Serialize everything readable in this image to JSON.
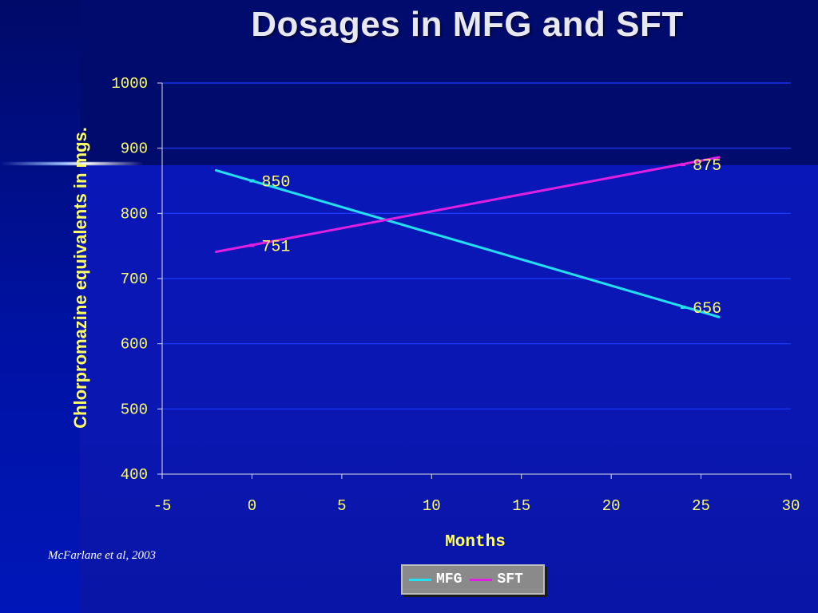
{
  "chart_data": {
    "type": "line",
    "title": "Dosages in MFG and SFT",
    "xlabel": "Months",
    "ylabel": "Chlorpromazine equivalents in mgs.",
    "xlim": [
      -5,
      30
    ],
    "ylim": [
      400,
      1000
    ],
    "xticks": [
      -5,
      0,
      5,
      10,
      15,
      20,
      25,
      30
    ],
    "yticks": [
      400,
      500,
      600,
      700,
      800,
      900,
      1000
    ],
    "grid": true,
    "legend_position": "bottom",
    "series": [
      {
        "name": "MFG",
        "color": "#22e0f0",
        "line_x": [
          -2,
          26
        ],
        "line_y": [
          866,
          641
        ],
        "points": [
          {
            "x": 0,
            "y": 850,
            "label": "850"
          },
          {
            "x": 24,
            "y": 656,
            "label": "656"
          }
        ]
      },
      {
        "name": "SFT",
        "color": "#e020e0",
        "line_x": [
          -2,
          26
        ],
        "line_y": [
          741,
          886
        ],
        "points": [
          {
            "x": 0,
            "y": 751,
            "label": "751"
          },
          {
            "x": 24,
            "y": 875,
            "label": "875"
          }
        ]
      }
    ]
  },
  "citation": "McFarlane et al, 2003"
}
